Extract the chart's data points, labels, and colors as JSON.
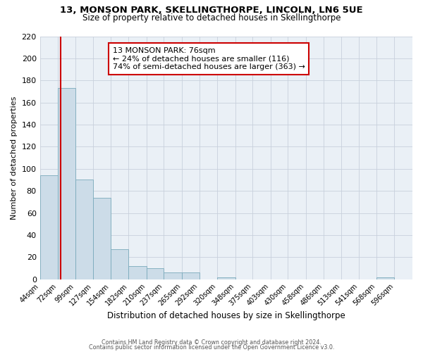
{
  "title": "13, MONSON PARK, SKELLINGTHORPE, LINCOLN, LN6 5UE",
  "subtitle": "Size of property relative to detached houses in Skellingthorpe",
  "xlabel": "Distribution of detached houses by size in Skellingthorpe",
  "ylabel": "Number of detached properties",
  "bar_color": "#ccdce8",
  "bar_edge_color": "#7aaabb",
  "background_color": "#eaf0f6",
  "grid_color": "#c8d0dc",
  "vline_x": 76,
  "vline_color": "#cc0000",
  "annotation_title": "13 MONSON PARK: 76sqm",
  "annotation_line1": "← 24% of detached houses are smaller (116)",
  "annotation_line2": "74% of semi-detached houses are larger (363) →",
  "annotation_box_color": "#cc0000",
  "bins": [
    44,
    72,
    99,
    127,
    154,
    182,
    210,
    237,
    265,
    292,
    320,
    348,
    375,
    403,
    430,
    458,
    486,
    513,
    541,
    568,
    596
  ],
  "bin_labels": [
    "44sqm",
    "72sqm",
    "99sqm",
    "127sqm",
    "154sqm",
    "182sqm",
    "210sqm",
    "237sqm",
    "265sqm",
    "292sqm",
    "320sqm",
    "348sqm",
    "375sqm",
    "403sqm",
    "430sqm",
    "458sqm",
    "486sqm",
    "513sqm",
    "541sqm",
    "568sqm",
    "596sqm"
  ],
  "bar_heights": [
    94,
    173,
    90,
    74,
    27,
    12,
    10,
    6,
    6,
    0,
    2,
    0,
    0,
    0,
    0,
    0,
    0,
    0,
    0,
    2
  ],
  "ylim": [
    0,
    220
  ],
  "yticks": [
    0,
    20,
    40,
    60,
    80,
    100,
    120,
    140,
    160,
    180,
    200,
    220
  ],
  "footer1": "Contains HM Land Registry data © Crown copyright and database right 2024.",
  "footer2": "Contains public sector information licensed under the Open Government Licence v3.0."
}
